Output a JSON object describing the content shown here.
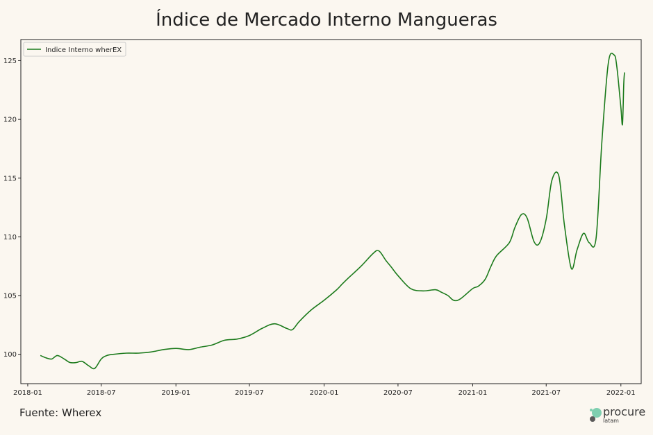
{
  "chart_data": {
    "type": "line",
    "title": "Índice de Mercado Interno Mangueras",
    "xlabel": "",
    "ylabel": "",
    "x_ticks": [
      "2018-01",
      "2018-07",
      "2019-01",
      "2019-07",
      "2020-01",
      "2020-07",
      "2021-01",
      "2021-07",
      "2022-01"
    ],
    "y_ticks": [
      "100",
      "105",
      "110",
      "115",
      "120",
      "125"
    ],
    "ylim": [
      97.5,
      126.8
    ],
    "xlim": [
      "2017-12-15",
      "2022-02-20"
    ],
    "legend_position": "top-left",
    "grid": false,
    "series": [
      {
        "name": "Indice Interno wherEX",
        "color": "#1b7a1b",
        "x": [
          "2018-02-01",
          "2018-02-15",
          "2018-03-01",
          "2018-03-15",
          "2018-04-01",
          "2018-04-15",
          "2018-05-01",
          "2018-05-15",
          "2018-06-01",
          "2018-06-15",
          "2018-07-01",
          "2018-07-15",
          "2018-08-01",
          "2018-09-01",
          "2018-10-01",
          "2018-11-01",
          "2018-12-01",
          "2019-01-01",
          "2019-02-01",
          "2019-03-01",
          "2019-04-01",
          "2019-05-01",
          "2019-06-01",
          "2019-07-01",
          "2019-08-01",
          "2019-09-01",
          "2019-10-01",
          "2019-10-15",
          "2019-11-01",
          "2019-12-01",
          "2020-01-01",
          "2020-02-01",
          "2020-02-15",
          "2020-03-01",
          "2020-04-01",
          "2020-05-01",
          "2020-05-15",
          "2020-06-01",
          "2020-06-15",
          "2020-07-01",
          "2020-08-01",
          "2020-09-01",
          "2020-10-01",
          "2020-10-15",
          "2020-11-01",
          "2020-11-15",
          "2020-12-01",
          "2021-01-01",
          "2021-01-15",
          "2021-02-01",
          "2021-02-15",
          "2021-03-01",
          "2021-04-01",
          "2021-04-15",
          "2021-05-01",
          "2021-05-15",
          "2021-06-01",
          "2021-06-15",
          "2021-07-01",
          "2021-07-15",
          "2021-08-01",
          "2021-08-15",
          "2021-09-01",
          "2021-09-15",
          "2021-10-01",
          "2021-10-15",
          "2021-11-01",
          "2021-11-15",
          "2021-12-01",
          "2021-12-15",
          "2021-12-22",
          "2022-01-01",
          "2022-01-05",
          "2022-01-08",
          "2022-01-10"
        ],
        "values": [
          99.9,
          99.7,
          99.6,
          99.9,
          99.6,
          99.3,
          99.3,
          99.4,
          99.0,
          98.8,
          99.6,
          99.9,
          100.0,
          100.1,
          100.1,
          100.2,
          100.4,
          100.5,
          100.4,
          100.6,
          100.8,
          101.2,
          101.3,
          101.6,
          102.2,
          102.6,
          102.2,
          102.1,
          102.8,
          103.8,
          104.6,
          105.5,
          106.0,
          106.5,
          107.5,
          108.6,
          108.8,
          108.0,
          107.4,
          106.7,
          105.6,
          105.4,
          105.5,
          105.3,
          105.0,
          104.6,
          104.7,
          105.6,
          105.8,
          106.4,
          107.5,
          108.4,
          109.5,
          110.8,
          111.9,
          111.6,
          109.6,
          109.5,
          111.5,
          114.8,
          115.2,
          111.0,
          107.3,
          108.9,
          110.3,
          109.5,
          109.9,
          118.0,
          124.8,
          125.5,
          124.5,
          121.0,
          119.6,
          123.0,
          124.0
        ]
      }
    ]
  },
  "source": "Fuente: Wherex",
  "logo": {
    "name": "procure",
    "sub": "latam",
    "colors": [
      "#7fcfb0",
      "#5a5a5a"
    ]
  }
}
